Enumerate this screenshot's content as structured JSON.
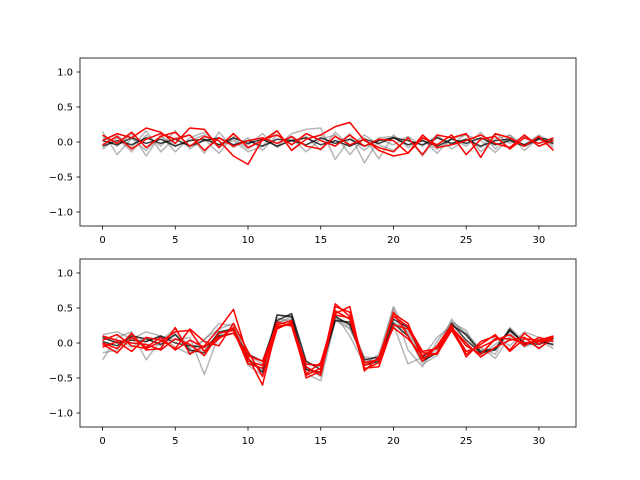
{
  "colors": {
    "gray_series": "#7a7a7a",
    "dark_series": "#000000",
    "red_series": "#ff0000",
    "axes": "#000000",
    "background": "#ffffff"
  },
  "chart_data": [
    {
      "type": "line",
      "xlim": [
        -1.55,
        32.55
      ],
      "ylim": [
        -1.2,
        1.2
      ],
      "x_ticks": [
        0,
        5,
        10,
        15,
        20,
        25,
        30
      ],
      "y_ticks": [
        -1.0,
        -0.5,
        0.0,
        0.5,
        1.0
      ],
      "x_tick_labels": [
        "0",
        "5",
        "10",
        "15",
        "20",
        "25",
        "30"
      ],
      "y_tick_labels": [
        "−1.0",
        "−0.5",
        "0.0",
        "0.5",
        "1.0"
      ],
      "grid": false,
      "legend": "none",
      "x": [
        0,
        1,
        2,
        3,
        4,
        5,
        6,
        7,
        8,
        9,
        10,
        11,
        12,
        13,
        14,
        15,
        16,
        17,
        18,
        19,
        20,
        21,
        22,
        23,
        24,
        25,
        26,
        27,
        28,
        29,
        30,
        31
      ],
      "series": [
        {
          "group": "gray",
          "values": [
            0.15,
            -0.18,
            0.05,
            -0.12,
            0.08,
            -0.05,
            0.02,
            0.1,
            -0.08,
            0.05,
            -0.1,
            0.04,
            -0.06,
            0.12,
            0.18,
            0.2,
            -0.25,
            0.05,
            -0.12,
            0.06,
            0.08,
            -0.04,
            0.02,
            -0.1,
            0.05,
            0.1,
            0.02,
            -0.15,
            0.06,
            -0.04,
            0.1,
            -0.02
          ]
        },
        {
          "group": "gray",
          "values": [
            0.08,
            -0.06,
            0.12,
            -0.2,
            0.1,
            -0.14,
            0.06,
            0.14,
            -0.04,
            0.02,
            -0.14,
            -0.06,
            0.16,
            -0.12,
            0.04,
            0.1,
            -0.06,
            0.12,
            -0.3,
            0.04,
            -0.04,
            0.08,
            -0.06,
            0.1,
            -0.1,
            0.04,
            -0.08,
            0.12,
            -0.02,
            0.08,
            -0.06,
            0.04
          ]
        },
        {
          "group": "gray",
          "values": [
            -0.1,
            0.06,
            -0.14,
            0.1,
            -0.06,
            0.16,
            -0.1,
            0.04,
            -0.16,
            0.08,
            -0.04,
            0.12,
            -0.08,
            0.06,
            -0.14,
            0.04,
            0.1,
            -0.18,
            0.06,
            -0.24,
            0.1,
            -0.08,
            0.04,
            -0.16,
            0.06,
            -0.06,
            0.14,
            -0.1,
            0.1,
            -0.06,
            0.08,
            -0.08
          ]
        },
        {
          "group": "gray",
          "values": [
            0.04,
            0.1,
            -0.08,
            0.16,
            -0.14,
            0.06,
            0.1,
            -0.16,
            0.14,
            -0.08,
            0.06,
            -0.12,
            0.1,
            -0.04,
            0.08,
            -0.12,
            0.14,
            -0.06,
            0.1,
            -0.04,
            -0.12,
            0.06,
            -0.2,
            0.08,
            -0.04,
            0.12,
            -0.14,
            0.04,
            0.1,
            -0.12,
            0.06,
            -0.04
          ]
        },
        {
          "group": "dark",
          "values": [
            -0.06,
            0.02,
            -0.04,
            0.06,
            -0.02,
            0.04,
            -0.06,
            0.02,
            0.06,
            -0.04,
            0.02,
            -0.06,
            0.04,
            0.02,
            -0.04,
            0.06,
            -0.02,
            0.04,
            -0.06,
            0.02,
            0.06,
            -0.04,
            0.02,
            -0.06,
            0.04,
            -0.02,
            0.06,
            -0.04,
            0.02,
            -0.06,
            0.04,
            -0.02
          ]
        },
        {
          "group": "dark",
          "values": [
            0.02,
            -0.04,
            0.06,
            -0.02,
            0.04,
            -0.06,
            0.02,
            0.04,
            -0.04,
            0.06,
            -0.02,
            0.04,
            -0.06,
            0.02,
            0.06,
            -0.04,
            0.02,
            -0.06,
            0.04,
            -0.02,
            0.06,
            0.02,
            -0.04,
            0.06,
            -0.02,
            0.04,
            -0.06,
            0.02,
            0.04,
            -0.04,
            0.06,
            0.02
          ]
        },
        {
          "group": "red",
          "values": [
            0.02,
            0.12,
            0.06,
            0.2,
            0.14,
            -0.02,
            0.2,
            0.18,
            -0.08,
            0.12,
            -0.08,
            0.02,
            0.16,
            -0.12,
            0.04,
            0.1,
            0.22,
            0.28,
            0.02,
            -0.08,
            -0.14,
            0.06,
            -0.18,
            0.1,
            0.06,
            0.12,
            -0.22,
            0.12,
            0.06,
            -0.06,
            0.08,
            -0.12
          ]
        },
        {
          "group": "red",
          "values": [
            0.1,
            -0.02,
            0.14,
            -0.08,
            0.08,
            0.14,
            -0.06,
            0.08,
            0.02,
            -0.2,
            -0.32,
            0.04,
            0.1,
            -0.04,
            0.12,
            0.02,
            -0.06,
            0.1,
            -0.06,
            0.04,
            0.02,
            -0.16,
            0.06,
            -0.04,
            0.1,
            -0.18,
            0.04,
            0.08,
            -0.1,
            0.06,
            -0.02,
            0.06
          ]
        },
        {
          "group": "red",
          "values": [
            -0.04,
            0.08,
            -0.1,
            0.04,
            0.12,
            0.04,
            0.1,
            -0.12,
            0.06,
            -0.06,
            0.02,
            0.06,
            -0.02,
            0.08,
            -0.06,
            -0.1,
            0.08,
            -0.04,
            0.04,
            -0.12,
            -0.2,
            -0.16,
            0.1,
            -0.08,
            -0.04,
            0.02,
            0.1,
            -0.02,
            -0.08,
            0.1,
            -0.06,
            0.02
          ]
        }
      ]
    },
    {
      "type": "line",
      "xlim": [
        -1.55,
        32.55
      ],
      "ylim": [
        -1.2,
        1.2
      ],
      "x_ticks": [
        0,
        5,
        10,
        15,
        20,
        25,
        30
      ],
      "y_ticks": [
        -1.0,
        -0.5,
        0.0,
        0.5,
        1.0
      ],
      "x_tick_labels": [
        "0",
        "5",
        "10",
        "15",
        "20",
        "25",
        "30"
      ],
      "y_tick_labels": [
        "−1.0",
        "−0.5",
        "0.0",
        "0.5",
        "1.0"
      ],
      "grid": false,
      "legend": "none",
      "x": [
        0,
        1,
        2,
        3,
        4,
        5,
        6,
        7,
        8,
        9,
        10,
        11,
        12,
        13,
        14,
        15,
        16,
        17,
        18,
        19,
        20,
        21,
        22,
        23,
        24,
        25,
        26,
        27,
        28,
        29,
        30,
        31
      ],
      "series": [
        {
          "group": "gray",
          "values": [
            0.12,
            0.16,
            0.06,
            0.16,
            0.1,
            0.04,
            0.08,
            -0.45,
            0.12,
            0.22,
            -0.32,
            -0.46,
            0.36,
            0.3,
            -0.36,
            -0.48,
            0.4,
            0.1,
            -0.3,
            -0.16,
            0.5,
            -0.1,
            -0.34,
            0.02,
            0.3,
            0.18,
            -0.2,
            0.1,
            -0.04,
            0.16,
            0.08,
            0.02
          ]
        },
        {
          "group": "gray",
          "values": [
            -0.24,
            0.08,
            0.16,
            -0.24,
            0.04,
            0.2,
            -0.08,
            0.04,
            0.28,
            0.24,
            -0.18,
            -0.3,
            0.4,
            0.36,
            -0.44,
            -0.54,
            0.32,
            0.2,
            -0.22,
            -0.3,
            0.26,
            -0.3,
            -0.2,
            0.08,
            0.24,
            -0.12,
            -0.06,
            -0.22,
            0.1,
            -0.04,
            0.06,
            -0.04
          ]
        },
        {
          "group": "gray",
          "values": [
            0.06,
            0.04,
            -0.06,
            0.08,
            -0.04,
            0.14,
            -0.12,
            -0.1,
            0.14,
            0.18,
            -0.28,
            -0.36,
            0.3,
            0.34,
            -0.38,
            -0.44,
            0.36,
            0.22,
            -0.26,
            -0.24,
            0.52,
            0.12,
            -0.3,
            -0.18,
            0.3,
            0.14,
            -0.08,
            -0.16,
            0.22,
            0.02,
            -0.06,
            0.04
          ]
        },
        {
          "group": "gray",
          "values": [
            -0.14,
            -0.1,
            0.12,
            0.02,
            0.1,
            -0.06,
            -0.16,
            0.06,
            0.2,
            0.28,
            -0.22,
            -0.4,
            0.28,
            0.38,
            -0.3,
            -0.34,
            0.34,
            0.28,
            -0.2,
            -0.22,
            0.3,
            0.16,
            -0.22,
            -0.1,
            0.34,
            0.1,
            -0.16,
            -0.02,
            0.16,
            -0.06,
            0.04,
            -0.08
          ]
        },
        {
          "group": "dark",
          "values": [
            0.02,
            -0.04,
            0.1,
            0.06,
            -0.02,
            0.12,
            -0.1,
            -0.14,
            0.16,
            0.2,
            -0.22,
            -0.42,
            0.4,
            0.38,
            -0.38,
            -0.42,
            0.38,
            0.26,
            -0.24,
            -0.2,
            0.34,
            0.22,
            -0.2,
            -0.06,
            0.26,
            0.12,
            -0.12,
            -0.08,
            0.2,
            -0.02,
            0.02,
            -0.02
          ]
        },
        {
          "group": "dark",
          "values": [
            0.08,
            0.0,
            0.04,
            0.02,
            0.1,
            0.0,
            -0.04,
            -0.06,
            0.1,
            0.14,
            -0.16,
            -0.26,
            0.32,
            0.42,
            -0.26,
            -0.38,
            0.32,
            0.3,
            -0.32,
            -0.26,
            0.28,
            0.1,
            -0.26,
            -0.14,
            0.28,
            0.04,
            -0.14,
            -0.1,
            0.18,
            0.0,
            -0.02,
            0.06
          ]
        },
        {
          "group": "red",
          "values": [
            0.0,
            -0.08,
            0.14,
            -0.1,
            -0.08,
            0.22,
            -0.16,
            -0.04,
            0.2,
            0.48,
            -0.2,
            -0.6,
            0.26,
            0.32,
            -0.5,
            -0.4,
            0.56,
            0.38,
            -0.38,
            -0.28,
            0.44,
            0.1,
            -0.26,
            -0.04,
            0.26,
            -0.2,
            0.02,
            0.1,
            -0.1,
            0.14,
            -0.02,
            0.1
          ]
        },
        {
          "group": "red",
          "values": [
            0.04,
            0.12,
            -0.04,
            -0.08,
            0.02,
            0.16,
            0.18,
            -0.12,
            0.06,
            0.22,
            -0.26,
            -0.32,
            0.3,
            0.24,
            -0.44,
            -0.28,
            0.42,
            0.52,
            -0.4,
            -0.2,
            0.38,
            0.24,
            -0.12,
            -0.08,
            0.2,
            -0.12,
            -0.06,
            0.04,
            0.12,
            -0.04,
            0.08,
            0.02
          ]
        },
        {
          "group": "red",
          "values": [
            -0.06,
            0.02,
            -0.12,
            0.08,
            0.04,
            -0.08,
            0.2,
            0.02,
            -0.04,
            0.28,
            -0.12,
            -0.48,
            0.2,
            0.3,
            -0.46,
            -0.36,
            0.52,
            0.44,
            -0.32,
            -0.22,
            0.42,
            0.28,
            -0.22,
            -0.14,
            0.22,
            0.0,
            -0.2,
            -0.06,
            0.04,
            0.08,
            -0.08,
            0.08
          ]
        },
        {
          "group": "red",
          "values": [
            0.1,
            0.04,
            0.0,
            -0.02,
            -0.1,
            0.06,
            -0.02,
            -0.18,
            0.14,
            0.18,
            -0.3,
            -0.36,
            0.22,
            0.28,
            -0.34,
            -0.46,
            0.46,
            0.34,
            -0.36,
            -0.34,
            0.26,
            0.2,
            -0.14,
            -0.16,
            0.18,
            -0.16,
            -0.02,
            0.12,
            -0.12,
            0.06,
            0.04,
            0.1
          ]
        },
        {
          "group": "red",
          "values": [
            -0.02,
            -0.14,
            0.08,
            -0.06,
            0.08,
            -0.1,
            0.04,
            -0.06,
            0.08,
            0.14,
            -0.18,
            -0.26,
            0.24,
            0.26,
            -0.3,
            -0.32,
            0.4,
            0.36,
            -0.28,
            -0.24,
            0.22,
            0.06,
            -0.18,
            -0.06,
            0.22,
            -0.04,
            -0.16,
            0.06,
            0.06,
            0.0,
            0.02,
            0.08
          ]
        }
      ]
    }
  ]
}
